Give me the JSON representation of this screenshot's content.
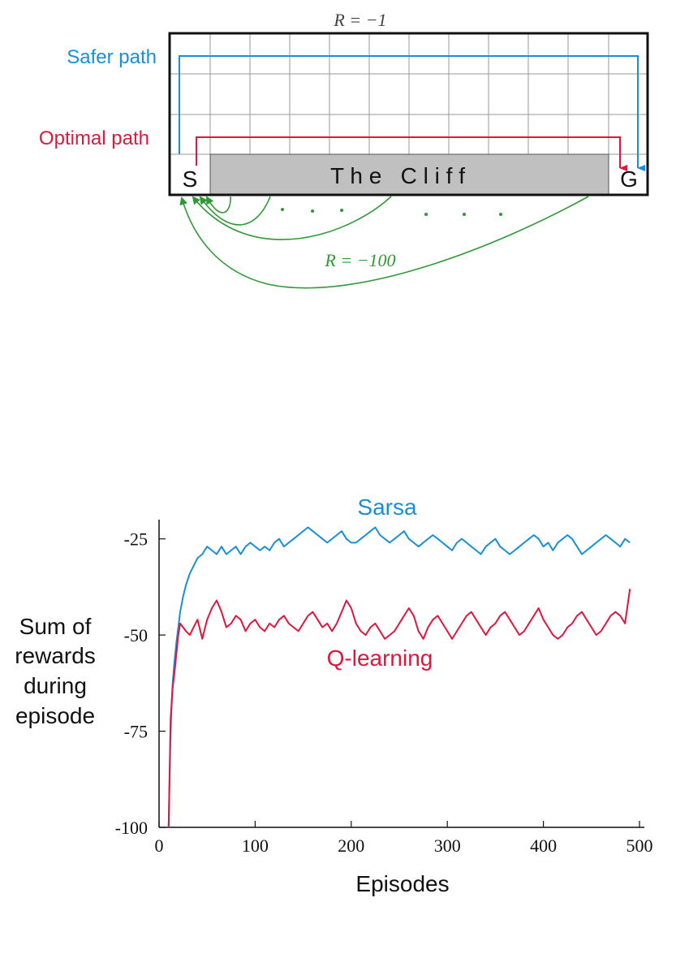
{
  "gridworld": {
    "step_reward": "R = −1",
    "cliff_reward": "R = −100",
    "cliff_label": "T h e   C l i f f",
    "start_label": "S",
    "goal_label": "G",
    "safer_path_label": "Safer path",
    "optimal_path_label": "Optimal path",
    "dots": "·   ·   ·",
    "colors": {
      "safer": "#1a8fd6",
      "optimal": "#e0163c",
      "cliff_return": "#2e9a36",
      "cliff_fill": "#c0c0c0"
    }
  },
  "chart_data": {
    "type": "line",
    "xlabel": "Episodes",
    "ylabel": [
      "Sum of",
      "rewards",
      "during",
      "episode"
    ],
    "xlim": [
      0,
      500
    ],
    "ylim": [
      -100,
      -20
    ],
    "xticks": [
      0,
      100,
      200,
      300,
      400,
      500
    ],
    "yticks": [
      -100,
      -75,
      -50,
      -25
    ],
    "grid": false,
    "series": [
      {
        "name": "Sarsa",
        "color": "#1a8fd6",
        "x": [
          10,
          12,
          14,
          16,
          18,
          20,
          22,
          25,
          28,
          32,
          36,
          40,
          45,
          50,
          55,
          60,
          65,
          70,
          75,
          80,
          85,
          90,
          95,
          100,
          105,
          110,
          115,
          120,
          125,
          130,
          135,
          140,
          145,
          150,
          155,
          160,
          165,
          170,
          175,
          180,
          185,
          190,
          195,
          200,
          205,
          210,
          215,
          220,
          225,
          230,
          235,
          240,
          245,
          250,
          255,
          260,
          265,
          270,
          275,
          280,
          285,
          290,
          295,
          300,
          305,
          310,
          315,
          320,
          325,
          330,
          335,
          340,
          345,
          350,
          355,
          360,
          365,
          370,
          375,
          380,
          385,
          390,
          395,
          400,
          405,
          410,
          415,
          420,
          425,
          430,
          435,
          440,
          445,
          450,
          455,
          460,
          465,
          470,
          475,
          480,
          485,
          490
        ],
        "values": [
          -100,
          -75,
          -63,
          -57,
          -52,
          -48,
          -44,
          -40,
          -37,
          -34,
          -32,
          -30,
          -29,
          -27,
          -28,
          -29,
          -27,
          -29,
          -28,
          -27,
          -29,
          -27,
          -26,
          -27,
          -28,
          -27,
          -28,
          -26,
          -25,
          -27,
          -26,
          -25,
          -24,
          -23,
          -22,
          -23,
          -24,
          -25,
          -26,
          -25,
          -24,
          -23,
          -25,
          -26,
          -26,
          -25,
          -24,
          -23,
          -22,
          -24,
          -25,
          -26,
          -25,
          -24,
          -23,
          -25,
          -26,
          -27,
          -26,
          -25,
          -24,
          -25,
          -26,
          -27,
          -28,
          -26,
          -25,
          -26,
          -27,
          -28,
          -29,
          -27,
          -26,
          -25,
          -27,
          -28,
          -29,
          -28,
          -27,
          -26,
          -25,
          -24,
          -25,
          -27,
          -26,
          -28,
          -26,
          -25,
          -24,
          -25,
          -27,
          -29,
          -28,
          -27,
          -26,
          -25,
          -24,
          -25,
          -26,
          -27,
          -25,
          -26
        ]
      },
      {
        "name": "Q-learning",
        "color": "#e0163c",
        "x": [
          10,
          12,
          14,
          16,
          18,
          20,
          22,
          25,
          28,
          32,
          36,
          40,
          45,
          50,
          55,
          60,
          65,
          70,
          75,
          80,
          85,
          90,
          95,
          100,
          105,
          110,
          115,
          120,
          125,
          130,
          135,
          140,
          145,
          150,
          155,
          160,
          165,
          170,
          175,
          180,
          185,
          190,
          195,
          200,
          205,
          210,
          215,
          220,
          225,
          230,
          235,
          240,
          245,
          250,
          255,
          260,
          265,
          270,
          275,
          280,
          285,
          290,
          295,
          300,
          305,
          310,
          315,
          320,
          325,
          330,
          335,
          340,
          345,
          350,
          355,
          360,
          365,
          370,
          375,
          380,
          385,
          390,
          395,
          400,
          405,
          410,
          415,
          420,
          425,
          430,
          435,
          440,
          445,
          450,
          455,
          460,
          465,
          470,
          475,
          480,
          485,
          490
        ],
        "values": [
          -100,
          -72,
          -64,
          -60,
          -55,
          -50,
          -47,
          -48,
          -49,
          -50,
          -48,
          -46,
          -51,
          -46,
          -43,
          -41,
          -44,
          -48,
          -47,
          -45,
          -46,
          -49,
          -47,
          -46,
          -48,
          -49,
          -47,
          -48,
          -46,
          -45,
          -47,
          -48,
          -49,
          -47,
          -45,
          -44,
          -46,
          -48,
          -47,
          -49,
          -47,
          -44,
          -41,
          -43,
          -47,
          -49,
          -50,
          -48,
          -47,
          -49,
          -51,
          -50,
          -49,
          -47,
          -45,
          -43,
          -45,
          -49,
          -51,
          -48,
          -46,
          -45,
          -47,
          -49,
          -51,
          -49,
          -47,
          -45,
          -44,
          -46,
          -48,
          -50,
          -48,
          -47,
          -45,
          -44,
          -46,
          -48,
          -50,
          -49,
          -47,
          -45,
          -43,
          -46,
          -48,
          -50,
          -51,
          -50,
          -48,
          -47,
          -45,
          -44,
          -46,
          -48,
          -50,
          -49,
          -47,
          -45,
          -44,
          -45,
          -47,
          -38
        ]
      }
    ]
  }
}
